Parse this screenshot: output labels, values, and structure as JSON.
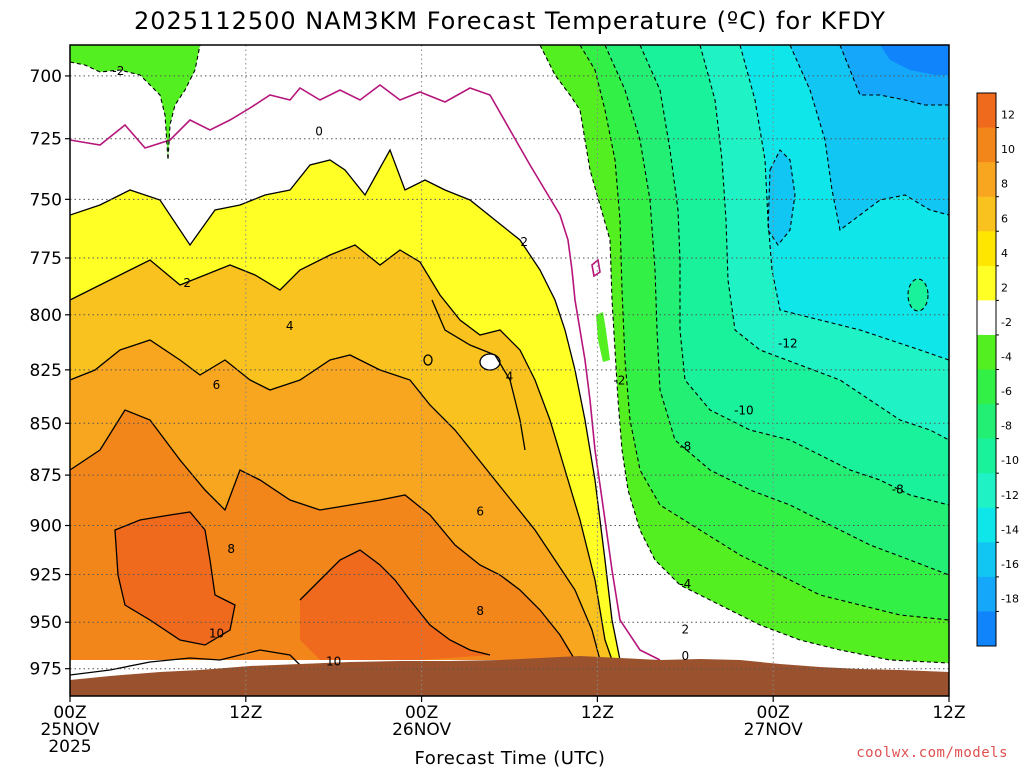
{
  "header": {
    "title": "2025112500 NAM3KM Forecast Temperature (ºC) for KFDY"
  },
  "footer": {
    "credit": "coolwx.com/models"
  },
  "chart_data": {
    "type": "contour",
    "title": "2025112500 NAM3KM Forecast Temperature (ºC) for KFDY",
    "xlabel": "Forecast Time (UTC)",
    "ylabel": "",
    "x_range_hours": [
      0,
      60
    ],
    "y_range_hpa": [
      990,
      688
    ],
    "y_scale": "log-pressure",
    "grid": true,
    "x_ticks": [
      {
        "hour": 0,
        "lines": [
          "00Z",
          "25NOV",
          "2025"
        ]
      },
      {
        "hour": 12,
        "lines": [
          "12Z"
        ]
      },
      {
        "hour": 24,
        "lines": [
          "00Z",
          "26NOV"
        ]
      },
      {
        "hour": 36,
        "lines": [
          "12Z"
        ]
      },
      {
        "hour": 48,
        "lines": [
          "00Z",
          "27NOV"
        ]
      },
      {
        "hour": 60,
        "lines": [
          "12Z"
        ]
      }
    ],
    "y_ticks": [
      700,
      725,
      750,
      775,
      800,
      825,
      850,
      875,
      900,
      925,
      950,
      975
    ],
    "legend": {
      "position": "right",
      "labels": [
        "12",
        "10",
        "8",
        "6",
        "4",
        "2",
        "-2",
        "-4",
        "-6",
        "-8",
        "-10",
        "-12",
        "-14",
        "-16",
        "-18"
      ],
      "colors": [
        "#f06a1e",
        "#f2861a",
        "#f8a51f",
        "#fac21f",
        "#ffe600",
        "#ffff26",
        "#ffffff",
        "#53ef20",
        "#33f047",
        "#22ef73",
        "#1af19b",
        "#1ff2c5",
        "#0fe6ea",
        "#12c6f4",
        "#14a7fa",
        "#1085fb"
      ]
    },
    "terrain_color": "#9a522e",
    "contour_labels": [
      {
        "text": "-2",
        "hour": 3.3,
        "hpa": 698
      },
      {
        "text": "0",
        "hour": 17.0,
        "hpa": 722
      },
      {
        "text": "2",
        "hour": 8.0,
        "hpa": 786
      },
      {
        "text": "2",
        "hour": 31.0,
        "hpa": 768
      },
      {
        "text": "4",
        "hour": 15.0,
        "hpa": 805
      },
      {
        "text": "4",
        "hour": 30.0,
        "hpa": 828
      },
      {
        "text": "6",
        "hour": 10.0,
        "hpa": 832
      },
      {
        "text": "6",
        "hour": 28.0,
        "hpa": 893
      },
      {
        "text": "8",
        "hour": 11.0,
        "hpa": 912
      },
      {
        "text": "8",
        "hour": 28.0,
        "hpa": 944
      },
      {
        "text": "10",
        "hour": 10.0,
        "hpa": 956
      },
      {
        "text": "10",
        "hour": 18.0,
        "hpa": 971
      },
      {
        "text": "-2",
        "hour": 37.5,
        "hpa": 830
      },
      {
        "text": "0",
        "hour": 42.0,
        "hpa": 968
      },
      {
        "text": "2",
        "hour": 42.0,
        "hpa": 954
      },
      {
        "text": "-4",
        "hour": 42.0,
        "hpa": 930
      },
      {
        "text": "-8",
        "hour": 42.0,
        "hpa": 861
      },
      {
        "text": "-10",
        "hour": 46.0,
        "hpa": 844
      },
      {
        "text": "-12",
        "hour": 49.0,
        "hpa": 813
      },
      {
        "text": "-8",
        "hour": 56.5,
        "hpa": 882
      }
    ]
  }
}
